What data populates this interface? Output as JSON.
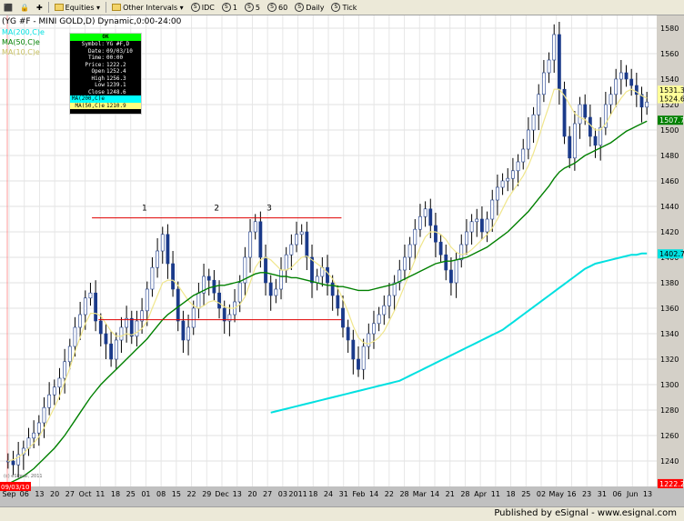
{
  "toolbar": {
    "items": [
      {
        "label": "Equities",
        "kind": "folder"
      },
      {
        "label": "Other Intervals",
        "kind": "folder"
      },
      {
        "label": "IDC",
        "kind": "circle"
      },
      {
        "label": "1",
        "kind": "circle"
      },
      {
        "label": "5",
        "kind": "circle"
      },
      {
        "label": "60",
        "kind": "circle"
      },
      {
        "label": "Daily",
        "kind": "circle"
      },
      {
        "label": "Tick",
        "kind": "circle"
      }
    ]
  },
  "chart_data": {
    "type": "candlestick",
    "title": "(YG #F - MINI GOLD,D) Dynamic,0:00-24:00",
    "legend": [
      {
        "name": "MA(200,C)e",
        "color": "#00e0e0"
      },
      {
        "name": "MA(50,C)e",
        "color": "#008000"
      },
      {
        "name": "MA(10,C)e",
        "color": "#ffff99"
      }
    ],
    "ylim": [
      1220,
      1590
    ],
    "yticks": [
      1240,
      1260,
      1280,
      1300,
      1320,
      1340,
      1360,
      1380,
      1400,
      1420,
      1440,
      1460,
      1480,
      1500,
      1520,
      1540,
      1560,
      1580
    ],
    "xticks": [
      "Sep",
      "06",
      "13",
      "20",
      "27",
      "Oct",
      "11",
      "18",
      "25",
      "01",
      "08",
      "15",
      "22",
      "29",
      "Dec",
      "13",
      "20",
      "27",
      "03",
      "2011",
      "18",
      "24",
      "31",
      "Feb",
      "14",
      "22",
      "28",
      "Mar",
      "14",
      "21",
      "28",
      "Apr",
      "11",
      "18",
      "25",
      "02",
      "May",
      "16",
      "23",
      "31",
      "06",
      "Jun",
      "13"
    ],
    "last_labels": [
      {
        "text": "1531.3",
        "value": 1531.3,
        "color": "#ffff99"
      },
      {
        "text": "1524.6",
        "value": 1524.6,
        "color": "#ffff99"
      },
      {
        "text": "1507.7",
        "value": 1507.7,
        "color": "#008000"
      },
      {
        "text": "1402.7",
        "value": 1402.7,
        "color": "#00e0e0"
      },
      {
        "text": "1222.2",
        "value": 1222.2,
        "color": "#ff0000"
      }
    ],
    "left_label": "09/03/10",
    "bottom_left_note": "(c) eSignal, 2011",
    "annotations": [
      {
        "text": "1",
        "x": 0.22,
        "y": 1434
      },
      {
        "text": "2",
        "x": 0.33,
        "y": 1434
      },
      {
        "text": "3",
        "x": 0.41,
        "y": 1434
      }
    ],
    "hlines": [
      {
        "from": 0.14,
        "to": 0.52,
        "y": 1431,
        "color": "#e00000"
      },
      {
        "from": 0.15,
        "to": 0.52,
        "y": 1351,
        "color": "#e00000"
      }
    ],
    "closes": [
      1240,
      1237,
      1245,
      1250,
      1258,
      1262,
      1270,
      1282,
      1292,
      1298,
      1305,
      1318,
      1330,
      1345,
      1355,
      1368,
      1372,
      1350,
      1340,
      1332,
      1320,
      1335,
      1345,
      1352,
      1338,
      1350,
      1358,
      1375,
      1392,
      1405,
      1418,
      1395,
      1375,
      1350,
      1335,
      1345,
      1360,
      1372,
      1385,
      1382,
      1372,
      1360,
      1350,
      1355,
      1365,
      1380,
      1400,
      1420,
      1428,
      1400,
      1380,
      1370,
      1375,
      1390,
      1402,
      1410,
      1418,
      1420,
      1400,
      1380,
      1385,
      1392,
      1380,
      1370,
      1360,
      1345,
      1335,
      1320,
      1312,
      1330,
      1340,
      1348,
      1355,
      1362,
      1370,
      1380,
      1390,
      1400,
      1410,
      1422,
      1432,
      1438,
      1425,
      1412,
      1402,
      1390,
      1380,
      1398,
      1410,
      1420,
      1428,
      1430,
      1420,
      1430,
      1445,
      1455,
      1460,
      1462,
      1468,
      1475,
      1485,
      1500,
      1512,
      1528,
      1545,
      1555,
      1575,
      1532,
      1495,
      1478,
      1505,
      1520,
      1510,
      1495,
      1488,
      1502,
      1520,
      1528,
      1540,
      1545,
      1540,
      1535,
      1528,
      1518,
      1522
    ],
    "ma10": [
      1240,
      1241,
      1243,
      1246,
      1250,
      1254,
      1259,
      1266,
      1274,
      1282,
      1291,
      1302,
      1313,
      1326,
      1337,
      1348,
      1356,
      1356,
      1354,
      1348,
      1342,
      1338,
      1338,
      1340,
      1339,
      1341,
      1344,
      1350,
      1360,
      1370,
      1380,
      1382,
      1382,
      1378,
      1372,
      1366,
      1362,
      1360,
      1362,
      1365,
      1366,
      1364,
      1361,
      1360,
      1360,
      1363,
      1369,
      1380,
      1392,
      1398,
      1400,
      1398,
      1394,
      1390,
      1390,
      1392,
      1396,
      1400,
      1401,
      1398,
      1395,
      1392,
      1388,
      1383,
      1376,
      1367,
      1357,
      1346,
      1337,
      1333,
      1332,
      1334,
      1337,
      1342,
      1350,
      1358,
      1368,
      1378,
      1388,
      1398,
      1408,
      1416,
      1420,
      1420,
      1418,
      1414,
      1408,
      1404,
      1402,
      1403,
      1406,
      1410,
      1414,
      1418,
      1423,
      1430,
      1438,
      1446,
      1452,
      1458,
      1464,
      1472,
      1482,
      1494,
      1507,
      1519,
      1532,
      1532,
      1527,
      1520,
      1513,
      1510,
      1508,
      1504,
      1500,
      1500,
      1505,
      1512,
      1519,
      1525,
      1530,
      1532,
      1530,
      1527,
      1525
    ],
    "ma50": [
      1222,
      1224,
      1226,
      1228,
      1231,
      1234,
      1238,
      1242,
      1246,
      1250,
      1255,
      1260,
      1266,
      1272,
      1278,
      1284,
      1290,
      1295,
      1300,
      1304,
      1308,
      1312,
      1316,
      1320,
      1324,
      1328,
      1332,
      1336,
      1341,
      1346,
      1351,
      1355,
      1358,
      1361,
      1364,
      1367,
      1370,
      1372,
      1374,
      1376,
      1377,
      1378,
      1378,
      1379,
      1380,
      1381,
      1383,
      1385,
      1387,
      1388,
      1388,
      1387,
      1386,
      1385,
      1385,
      1384,
      1384,
      1383,
      1382,
      1381,
      1380,
      1379,
      1378,
      1378,
      1377,
      1377,
      1376,
      1375,
      1374,
      1374,
      1374,
      1375,
      1376,
      1377,
      1378,
      1379,
      1381,
      1383,
      1385,
      1387,
      1389,
      1391,
      1393,
      1395,
      1396,
      1397,
      1397,
      1398,
      1399,
      1400,
      1402,
      1404,
      1406,
      1408,
      1411,
      1414,
      1417,
      1420,
      1424,
      1428,
      1432,
      1436,
      1441,
      1446,
      1451,
      1456,
      1462,
      1467,
      1470,
      1472,
      1474,
      1477,
      1480,
      1482,
      1484,
      1486,
      1488,
      1490,
      1493,
      1496,
      1499,
      1501,
      1503,
      1505,
      1507
    ],
    "ma200_start_index": 51,
    "ma200": [
      1278,
      1279,
      1280,
      1281,
      1282,
      1283,
      1284,
      1285,
      1286,
      1287,
      1288,
      1289,
      1290,
      1291,
      1292,
      1293,
      1294,
      1295,
      1296,
      1297,
      1298,
      1299,
      1300,
      1301,
      1302,
      1303,
      1305,
      1307,
      1309,
      1311,
      1313,
      1315,
      1317,
      1319,
      1321,
      1323,
      1325,
      1327,
      1329,
      1331,
      1333,
      1335,
      1337,
      1339,
      1341,
      1343,
      1346,
      1349,
      1352,
      1355,
      1358,
      1361,
      1364,
      1367,
      1370,
      1373,
      1376,
      1379,
      1382,
      1385,
      1388,
      1391,
      1393,
      1395,
      1396,
      1397,
      1398,
      1399,
      1400,
      1401,
      1402,
      1402,
      1403,
      1403
    ]
  },
  "footer": {
    "text": "Published by eSignal - www.esignal.com"
  }
}
